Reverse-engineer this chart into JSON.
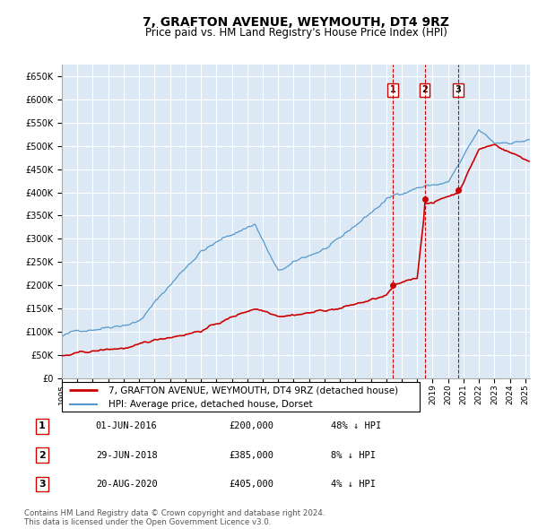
{
  "title": "7, GRAFTON AVENUE, WEYMOUTH, DT4 9RZ",
  "subtitle": "Price paid vs. HM Land Registry's House Price Index (HPI)",
  "title_fontsize": 10,
  "subtitle_fontsize": 8.5,
  "plot_bg_color": "#dce9f5",
  "ylim": [
    0,
    675000
  ],
  "yticks": [
    0,
    50000,
    100000,
    150000,
    200000,
    250000,
    300000,
    350000,
    400000,
    450000,
    500000,
    550000,
    600000,
    650000
  ],
  "sale_dates_num": [
    2016.42,
    2018.49,
    2020.64
  ],
  "sale_prices": [
    200000,
    385000,
    405000
  ],
  "sale_labels": [
    "1",
    "2",
    "3"
  ],
  "transactions": [
    {
      "label": "1",
      "date": "01-JUN-2016",
      "price": "£200,000",
      "hpi_note": "48% ↓ HPI"
    },
    {
      "label": "2",
      "date": "29-JUN-2018",
      "price": "£385,000",
      "hpi_note": "8% ↓ HPI"
    },
    {
      "label": "3",
      "date": "20-AUG-2020",
      "price": "£405,000",
      "hpi_note": "4% ↓ HPI"
    }
  ],
  "legend_line1": "7, GRAFTON AVENUE, WEYMOUTH, DT4 9RZ (detached house)",
  "legend_line2": "HPI: Average price, detached house, Dorset",
  "red_line_color": "#cc0000",
  "blue_line_color": "#5599cc",
  "footer_text": "Contains HM Land Registry data © Crown copyright and database right 2024.\nThis data is licensed under the Open Government Licence v3.0.",
  "grid_color": "#ffffff",
  "dashed_line_color": "#cc0000"
}
